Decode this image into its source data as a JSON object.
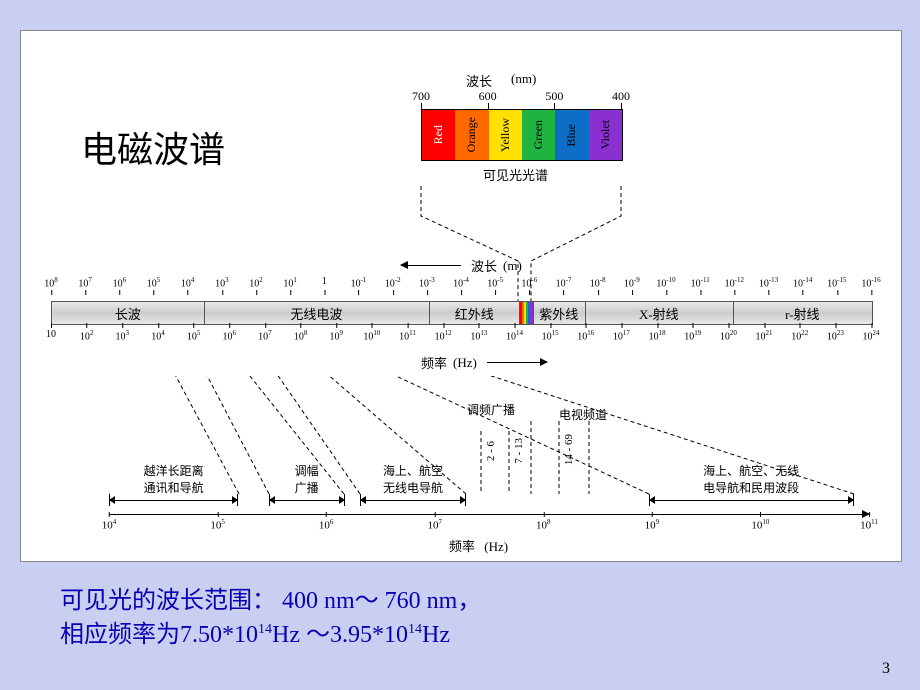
{
  "title": "电磁波谱",
  "slide_number": "3",
  "visible_spectrum": {
    "top_label": "波长",
    "unit": "(nm)",
    "ticks": [
      "700",
      "600",
      "500",
      "400"
    ],
    "segments": [
      {
        "label": "Red",
        "color": "#ff0000",
        "text_color": "#ffffff"
      },
      {
        "label": "Orange",
        "color": "#ff6a00",
        "text_color": "#000000"
      },
      {
        "label": "Yellow",
        "color": "#ffe000",
        "text_color": "#000000"
      },
      {
        "label": "Green",
        "color": "#1fb33f",
        "text_color": "#000000"
      },
      {
        "label": "Blue",
        "color": "#0e6dc7",
        "text_color": "#000000"
      },
      {
        "label": "Violet",
        "color": "#8a2fd0",
        "text_color": "#000000"
      }
    ],
    "bottom_label": "可见光光谱"
  },
  "wavelength_axis": {
    "label": "波长",
    "unit": "(m)",
    "exponents": [
      8,
      7,
      6,
      5,
      4,
      3,
      2,
      1,
      null,
      -1,
      -2,
      -3,
      -4,
      -5,
      -6,
      -7,
      -8,
      -9,
      -10,
      -11,
      -12,
      -13,
      -14,
      -15,
      -16
    ],
    "one_label": "1"
  },
  "bands": {
    "names": [
      "长波",
      "无线电波",
      "红外线",
      "紫外线",
      "X-射线",
      "r-射线"
    ],
    "dividers_pct": [
      18.5,
      46,
      57,
      58.6,
      65,
      83
    ],
    "vis_inset": {
      "left_pct": 57,
      "right_pct": 58.6,
      "colors": [
        "#ff0000",
        "#ff6a00",
        "#ffe000",
        "#1fb33f",
        "#0e6dc7",
        "#8a2fd0"
      ]
    }
  },
  "frequency_axis": {
    "label": "频率",
    "unit": "(Hz)",
    "exponents": [
      null,
      2,
      3,
      4,
      5,
      6,
      7,
      8,
      9,
      10,
      11,
      12,
      13,
      14,
      15,
      16,
      17,
      18,
      19,
      20,
      21,
      22,
      23,
      24
    ],
    "first_label": "10"
  },
  "applications": {
    "channels": {
      "fm_label": "调频广播",
      "tv_label": "电视频道",
      "ranges": [
        {
          "text": "2 - 6"
        },
        {
          "text": "7 - 13"
        },
        {
          "text": "14 - 69"
        }
      ]
    },
    "items": [
      {
        "label": "越洋长距离\n通讯和导航",
        "left_pct": 0,
        "right_pct": 17
      },
      {
        "label": "调幅\n广播",
        "left_pct": 21,
        "right_pct": 31
      },
      {
        "label": "海上、航空\n无线电导航",
        "left_pct": 33,
        "right_pct": 47
      },
      {
        "label": "海上、航空、无线\n电导航和民用波段",
        "left_pct": 71,
        "right_pct": 98
      }
    ],
    "axis": {
      "label": "频率",
      "unit": "(Hz)",
      "exponents": [
        4,
        5,
        6,
        7,
        8,
        9,
        10,
        11
      ]
    }
  },
  "caption": {
    "line1_a": "可见光的波长范围： 400 nm～ 760 nm，",
    "line2_a": "相应频率为7.50*10",
    "line2_exp1": "14",
    "line2_b": "Hz ～3.95*10",
    "line2_exp2": "14",
    "line2_c": "Hz"
  },
  "style": {
    "page_bg": "#c8cff0",
    "box_bg": "#ffffff",
    "band_bg": "#d8d8d8",
    "caption_color": "#0a00b4",
    "title_fontsize": 36,
    "caption_fontsize": 24
  }
}
